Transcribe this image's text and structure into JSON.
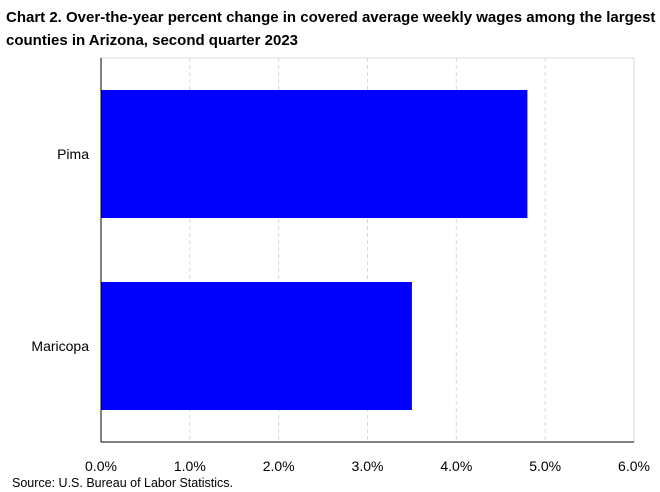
{
  "chart_data": {
    "type": "bar",
    "orientation": "horizontal",
    "title": "Chart 2. Over-the-year percent change in covered average weekly wages among the largest counties in Arizona, second quarter 2023",
    "categories": [
      "Pima",
      "Maricopa"
    ],
    "values": [
      4.8,
      3.5
    ],
    "xlim": [
      0,
      6
    ],
    "xticks": [
      "0.0%",
      "1.0%",
      "2.0%",
      "3.0%",
      "4.0%",
      "5.0%",
      "6.0%"
    ],
    "xtick_values": [
      0,
      1,
      2,
      3,
      4,
      5,
      6
    ],
    "bar_color": "#0000FF",
    "grid": "vertical dashed",
    "legend": "none"
  },
  "source": "Source: U.S. Bureau of Labor Statistics."
}
